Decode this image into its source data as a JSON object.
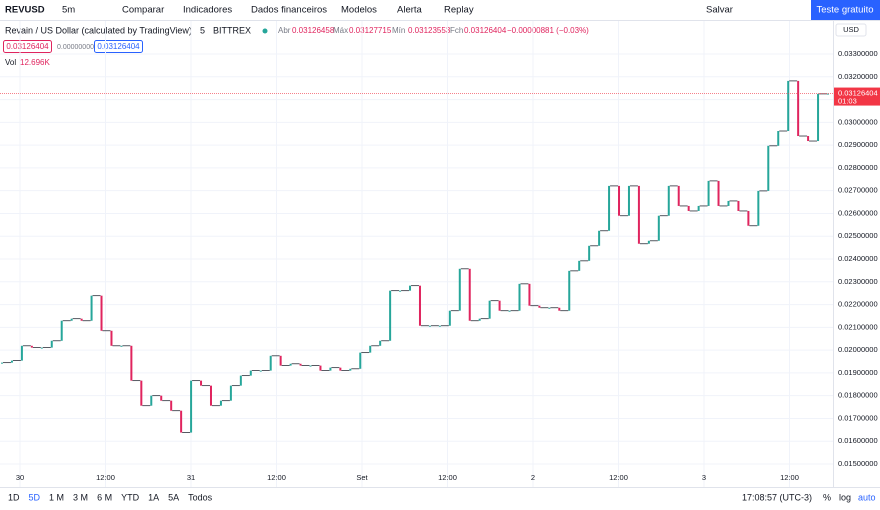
{
  "toolbar": {
    "symbol": "REVUSD",
    "interval": "5m",
    "items": [
      "Comparar",
      "Indicadores",
      "Dados financeiros",
      "Modelos",
      "Alerta",
      "Replay"
    ],
    "save": "Salvar",
    "trial": "Teste gratuito"
  },
  "legend": {
    "name": "Revain / US Dollar (calculated by TradingView)",
    "interval": "5",
    "exchange": "BITTREX",
    "open_label": "Abr",
    "open": "0.03126458",
    "high_label": "Máx",
    "high": "0.03127715",
    "low_label": "Mín",
    "low": "0.03123553",
    "close_label": "Fch",
    "close": "0.03126404",
    "change": "−0.00000881 (−0.03%)",
    "bid": "0.03126404",
    "spread": "0.00000000",
    "ask": "0.03126404",
    "vol_label": "Vol",
    "vol": "12.696K"
  },
  "chart": {
    "type": "candlestick",
    "currency": "USD",
    "closes": [
      0.01945,
      0.01954,
      0.02019,
      0.02011,
      0.02011,
      0.02041,
      0.02129,
      0.02138,
      0.02129,
      0.02239,
      0.02085,
      0.02019,
      0.02019,
      0.01866,
      0.01756,
      0.018,
      0.01778,
      0.01734,
      0.01638,
      0.01866,
      0.01844,
      0.01756,
      0.01778,
      0.01844,
      0.01888,
      0.0191,
      0.0191,
      0.01975,
      0.01932,
      0.0194,
      0.01932,
      0.01932,
      0.0191,
      0.01923,
      0.0191,
      0.01918,
      0.01989,
      0.02019,
      0.02041,
      0.02261,
      0.02261,
      0.02283,
      0.02107,
      0.02107,
      0.02107,
      0.02173,
      0.02357,
      0.02129,
      0.02138,
      0.02217,
      0.02173,
      0.02173,
      0.02291,
      0.02195,
      0.02186,
      0.02186,
      0.02173,
      0.02348,
      0.02392,
      0.02458,
      0.02524,
      0.02721,
      0.0259,
      0.02721,
      0.02467,
      0.0248,
      0.0259,
      0.02721,
      0.02633,
      0.02611,
      0.02633,
      0.02743,
      0.02633,
      0.02655,
      0.02611,
      0.02546,
      0.02699,
      0.02897,
      0.02962,
      0.03182,
      0.0294,
      0.02918,
      0.03125,
      0.03126404
    ],
    "up_color": "#26a69a",
    "down_color": "#e0245e",
    "ylim": [
      0.01399,
      0.03445
    ],
    "yticks": [
      {
        "value": 0.015,
        "label": "0.01500000"
      },
      {
        "value": 0.016,
        "label": "0.01600000"
      },
      {
        "value": 0.017,
        "label": "0.01700000"
      },
      {
        "value": 0.018,
        "label": "0.01800000"
      },
      {
        "value": 0.019,
        "label": "0.01900000"
      },
      {
        "value": 0.02,
        "label": "0.02000000"
      },
      {
        "value": 0.021,
        "label": "0.02100000"
      },
      {
        "value": 0.022,
        "label": "0.02200000"
      },
      {
        "value": 0.023,
        "label": "0.02300000"
      },
      {
        "value": 0.024,
        "label": "0.02400000"
      },
      {
        "value": 0.025,
        "label": "0.02500000"
      },
      {
        "value": 0.026,
        "label": "0.02600000"
      },
      {
        "value": 0.027,
        "label": "0.02700000"
      },
      {
        "value": 0.028,
        "label": "0.02800000"
      },
      {
        "value": 0.029,
        "label": "0.02900000"
      },
      {
        "value": 0.03,
        "label": "0.03000000"
      },
      {
        "value": 0.031,
        "label": "0.03100000"
      },
      {
        "value": 0.032,
        "label": "0.03200000"
      },
      {
        "value": 0.033,
        "label": "0.03300000"
      }
    ],
    "xticks": [
      "30",
      "12:00",
      "31",
      "12:00",
      "Set",
      "12:00",
      "2",
      "12:00",
      "3",
      "12:00"
    ],
    "last_price": {
      "value": 0.03126404,
      "label": "0.03126404"
    },
    "countdown": "01:03"
  },
  "bottom_bar": {
    "ranges": [
      "1D",
      "5D",
      "1 M",
      "3 M",
      "6 M",
      "YTD",
      "1A",
      "5A",
      "Todos"
    ],
    "clock": "17:08:57 (UTC-3)",
    "percent": "%",
    "log": "log",
    "auto": "auto"
  }
}
